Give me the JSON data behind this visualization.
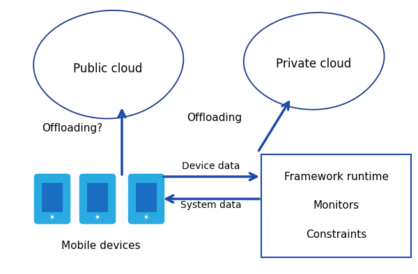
{
  "bg_color": "#ffffff",
  "cloud_color": "#ffffff",
  "cloud_edge_color": "#1a3a8c",
  "arrow_color": "#1a4aaa",
  "phone_body_color": "#29abe2",
  "phone_outline_color": "#29abe2",
  "phone_screen_color": "#1a6fc4",
  "box_color": "#ffffff",
  "box_edge_color": "#1a4aaa",
  "text_color": "#000000",
  "public_cloud_label": "Public cloud",
  "private_cloud_label": "Private cloud",
  "mobile_label": "Mobile devices",
  "offloading_q_label": "Offloading?",
  "offloading_label": "Offloading",
  "device_data_label": "Device data",
  "system_data_label": "System data",
  "fw_runtime_label": "Framework runtime",
  "monitors_label": "Monitors",
  "constraints_label": "Constraints",
  "figsize": [
    6.0,
    3.94
  ],
  "dpi": 100
}
